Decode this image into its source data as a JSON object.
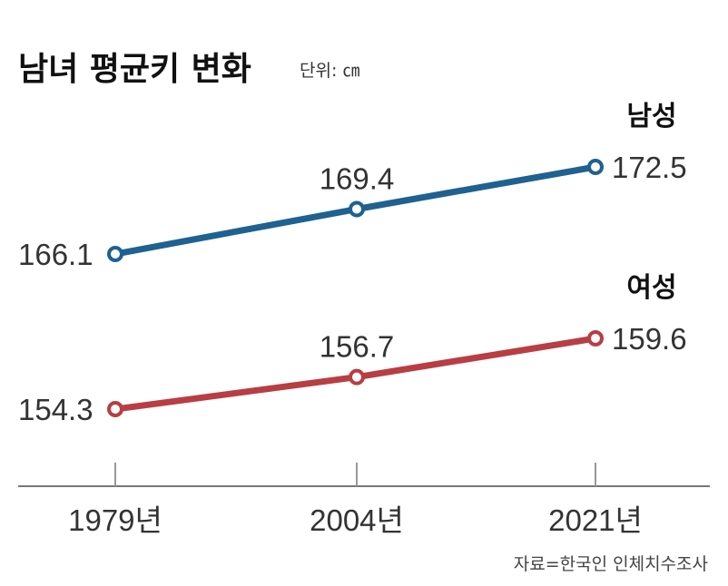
{
  "header": {
    "title": "남녀 평균키 변화",
    "unit": "단위: ㎝"
  },
  "source": "자료=한국인 인체치수조사",
  "chart_data": {
    "type": "line",
    "title": "남녀 평균키 변화",
    "unit": "단위: ㎝",
    "categories": [
      "1979년",
      "2004년",
      "2021년"
    ],
    "series": [
      {
        "name": "남성",
        "values": [
          166.1,
          169.4,
          172.5
        ],
        "color": "#1f6191"
      },
      {
        "name": "여성",
        "values": [
          154.3,
          156.7,
          159.6
        ],
        "color": "#b83e44"
      }
    ],
    "xlabel": "",
    "ylabel": "",
    "grid": false,
    "legend": "series labels at line ends (top-right)",
    "source": "자료=한국인 인체치수조사"
  }
}
